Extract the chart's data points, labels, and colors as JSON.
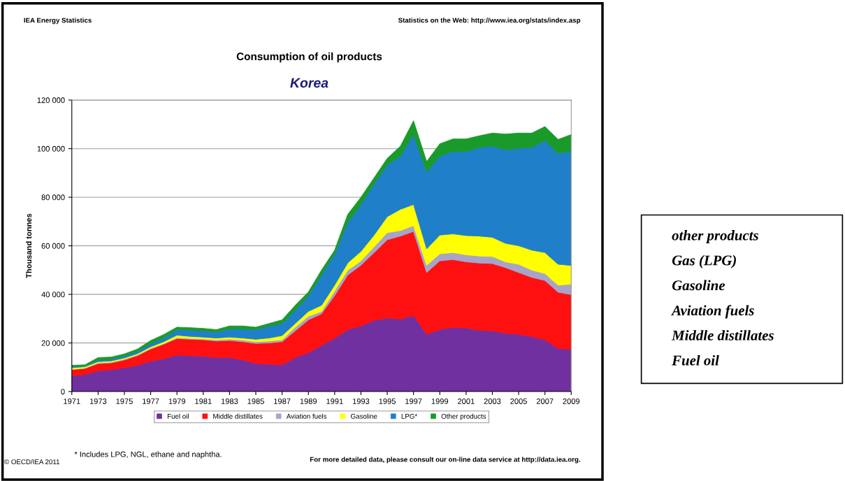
{
  "chart_data": {
    "type": "area",
    "stacked": true,
    "title": "Consumption of oil products",
    "subtitle": "Korea",
    "ylabel": "Thousand tonnes",
    "x": [
      1971,
      1972,
      1973,
      1974,
      1975,
      1976,
      1977,
      1978,
      1979,
      1980,
      1981,
      1982,
      1983,
      1984,
      1985,
      1986,
      1987,
      1988,
      1989,
      1990,
      1991,
      1992,
      1993,
      1994,
      1995,
      1996,
      1997,
      1998,
      1999,
      2000,
      2001,
      2002,
      2003,
      2004,
      2005,
      2006,
      2007,
      2008,
      2009
    ],
    "xlim": [
      1971,
      2009
    ],
    "xticks": [
      1971,
      1973,
      1975,
      1977,
      1979,
      1981,
      1983,
      1985,
      1987,
      1989,
      1991,
      1993,
      1995,
      1997,
      1999,
      2001,
      2003,
      2005,
      2007,
      2009
    ],
    "ylim": [
      0,
      120000
    ],
    "yticks": [
      0,
      {
        "value": 20000,
        "label": "20 000"
      },
      {
        "value": 40000,
        "label": "40 000"
      },
      {
        "value": 60000,
        "label": "60 000"
      },
      {
        "value": 80000,
        "label": "80 000"
      },
      {
        "value": 100000,
        "label": "100 000"
      },
      {
        "value": 120000,
        "label": "120 000"
      }
    ],
    "grid": "y",
    "legend": "bottom",
    "series": [
      {
        "name": "Fuel oil",
        "color": "#7030a0",
        "values": [
          6500,
          7000,
          8500,
          9000,
          9800,
          10800,
          12500,
          13500,
          15000,
          14800,
          14500,
          14000,
          14000,
          13000,
          11500,
          11200,
          11000,
          14000,
          16000,
          19000,
          22000,
          25500,
          27000,
          29300,
          30300,
          29800,
          31300,
          23600,
          25500,
          26400,
          26200,
          25200,
          25000,
          24000,
          23600,
          22600,
          21300,
          17800,
          17300
        ]
      },
      {
        "name": "Middle distillates",
        "color": "#ff1010",
        "values": [
          2500,
          2500,
          3000,
          2800,
          3200,
          4000,
          5000,
          6000,
          6800,
          6700,
          6800,
          6800,
          7000,
          7500,
          8300,
          8800,
          9500,
          11000,
          13500,
          13000,
          17500,
          22500,
          25000,
          27900,
          32200,
          34200,
          34600,
          25400,
          28300,
          27900,
          27200,
          27700,
          27700,
          27000,
          25400,
          24400,
          24400,
          23100,
          22600
        ]
      },
      {
        "name": "Aviation fuels",
        "color": "#a8a4c8",
        "values": [
          200,
          200,
          300,
          300,
          300,
          300,
          300,
          300,
          400,
          400,
          400,
          500,
          600,
          700,
          700,
          800,
          800,
          1500,
          1500,
          1000,
          1900,
          2000,
          1800,
          2400,
          2900,
          2300,
          2400,
          3000,
          2900,
          2900,
          2900,
          2900,
          2900,
          2400,
          3400,
          3000,
          2900,
          2900,
          4300
        ]
      },
      {
        "name": "Gasoline",
        "color": "#ffff00",
        "values": [
          600,
          500,
          500,
          500,
          500,
          500,
          600,
          700,
          1000,
          800,
          700,
          700,
          800,
          800,
          1000,
          1200,
          1700,
          1500,
          2000,
          2500,
          2400,
          3000,
          3900,
          4800,
          6600,
          8700,
          8700,
          6700,
          7700,
          7700,
          7900,
          8200,
          7900,
          7600,
          7600,
          8200,
          8600,
          8600,
          7700
        ]
      },
      {
        "name": "LPG*",
        "color": "#1f7fc8",
        "values": [
          400,
          400,
          700,
          700,
          1000,
          1000,
          1400,
          1500,
          2300,
          2500,
          2600,
          2500,
          3400,
          3800,
          4000,
          5000,
          5000,
          5500,
          6500,
          12500,
          12900,
          16700,
          19300,
          21200,
          21300,
          22000,
          28800,
          31700,
          32600,
          33900,
          34600,
          36500,
          37500,
          38500,
          40200,
          42300,
          46200,
          45600,
          47100
        ]
      },
      {
        "name": "Other products",
        "color": "#1a9a2a",
        "values": [
          600,
          400,
          1000,
          900,
          700,
          900,
          1200,
          1500,
          1000,
          1100,
          1000,
          1000,
          1200,
          1200,
          1000,
          1000,
          1500,
          2000,
          1500,
          2000,
          1500,
          3300,
          3000,
          2400,
          2700,
          4000,
          5700,
          4300,
          5000,
          5200,
          5200,
          4800,
          5400,
          6500,
          6200,
          5900,
          5700,
          5800,
          6800
        ]
      }
    ],
    "annotations": [
      "IEA Energy Statistics",
      "Statistics on the Web: http://www.iea.org/stats/index.asp",
      "* Includes LPG, NGL, ethane and naphtha.",
      "© OECD/IEA 2011",
      "For more detailed data, please consult our on-line data service at http://data.iea.org.",
      "other products",
      "Gas (LPG)",
      "Gasoline",
      "Aviation fuels",
      "Middle distillates",
      "Fuel oil"
    ]
  }
}
